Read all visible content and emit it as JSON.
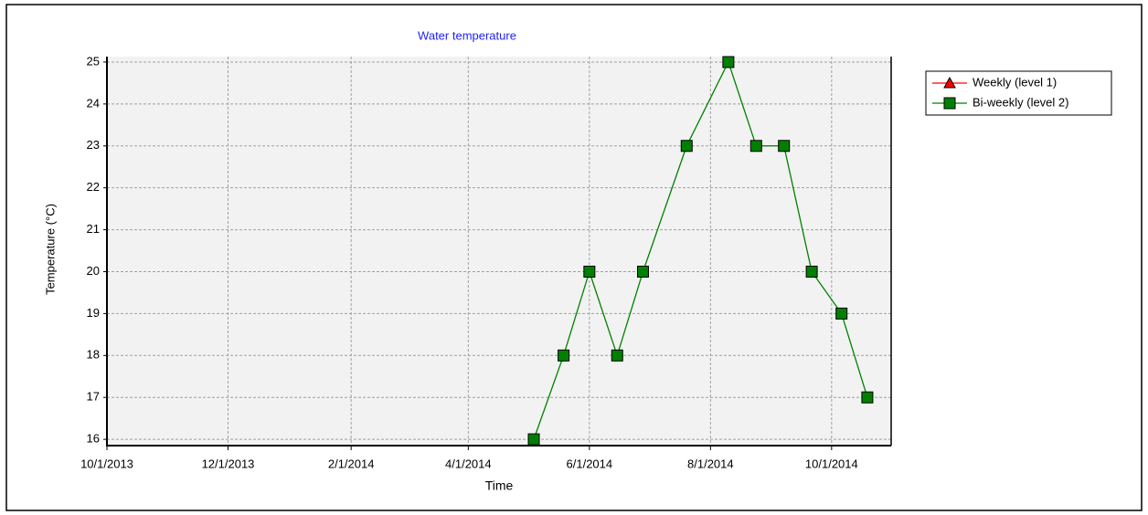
{
  "chart_data": {
    "type": "line",
    "title": "Water temperature",
    "x_label": "Time",
    "y_label": "Temperature (°C)",
    "x": [
      "2014-05-04",
      "2014-05-19",
      "2014-06-01",
      "2014-06-15",
      "2014-06-28",
      "2014-07-20",
      "2014-08-10",
      "2014-08-24",
      "2014-09-07",
      "2014-09-21",
      "2014-10-06",
      "2014-10-19"
    ],
    "series": [
      {
        "name": "Weekly (level 1)",
        "color": "#ff0000",
        "marker": "triangle",
        "values": [
          null,
          null,
          null,
          null,
          null,
          null,
          null,
          null,
          null,
          null,
          null,
          null
        ]
      },
      {
        "name": "Bi-weekly (level 2)",
        "color": "#008000",
        "marker": "square",
        "values": [
          16,
          18,
          20,
          18,
          20,
          23,
          25,
          23,
          23,
          20,
          19,
          17
        ]
      }
    ],
    "xlim": [
      "2013-10-01",
      "2014-10-31"
    ],
    "xticks": [
      {
        "value": "2013-10-01",
        "label": "10/1/2013"
      },
      {
        "value": "2013-12-01",
        "label": "12/1/2013"
      },
      {
        "value": "2014-02-01",
        "label": "2/1/2014"
      },
      {
        "value": "2014-04-01",
        "label": "4/1/2014"
      },
      {
        "value": "2014-06-01",
        "label": "6/1/2014"
      },
      {
        "value": "2014-08-01",
        "label": "8/1/2014"
      },
      {
        "value": "2014-10-01",
        "label": "10/1/2014"
      }
    ],
    "ylim": [
      15.85,
      25.13
    ],
    "yticks": [
      16,
      17,
      18,
      19,
      20,
      21,
      22,
      23,
      24,
      25
    ],
    "grid": true,
    "legend": "right"
  }
}
